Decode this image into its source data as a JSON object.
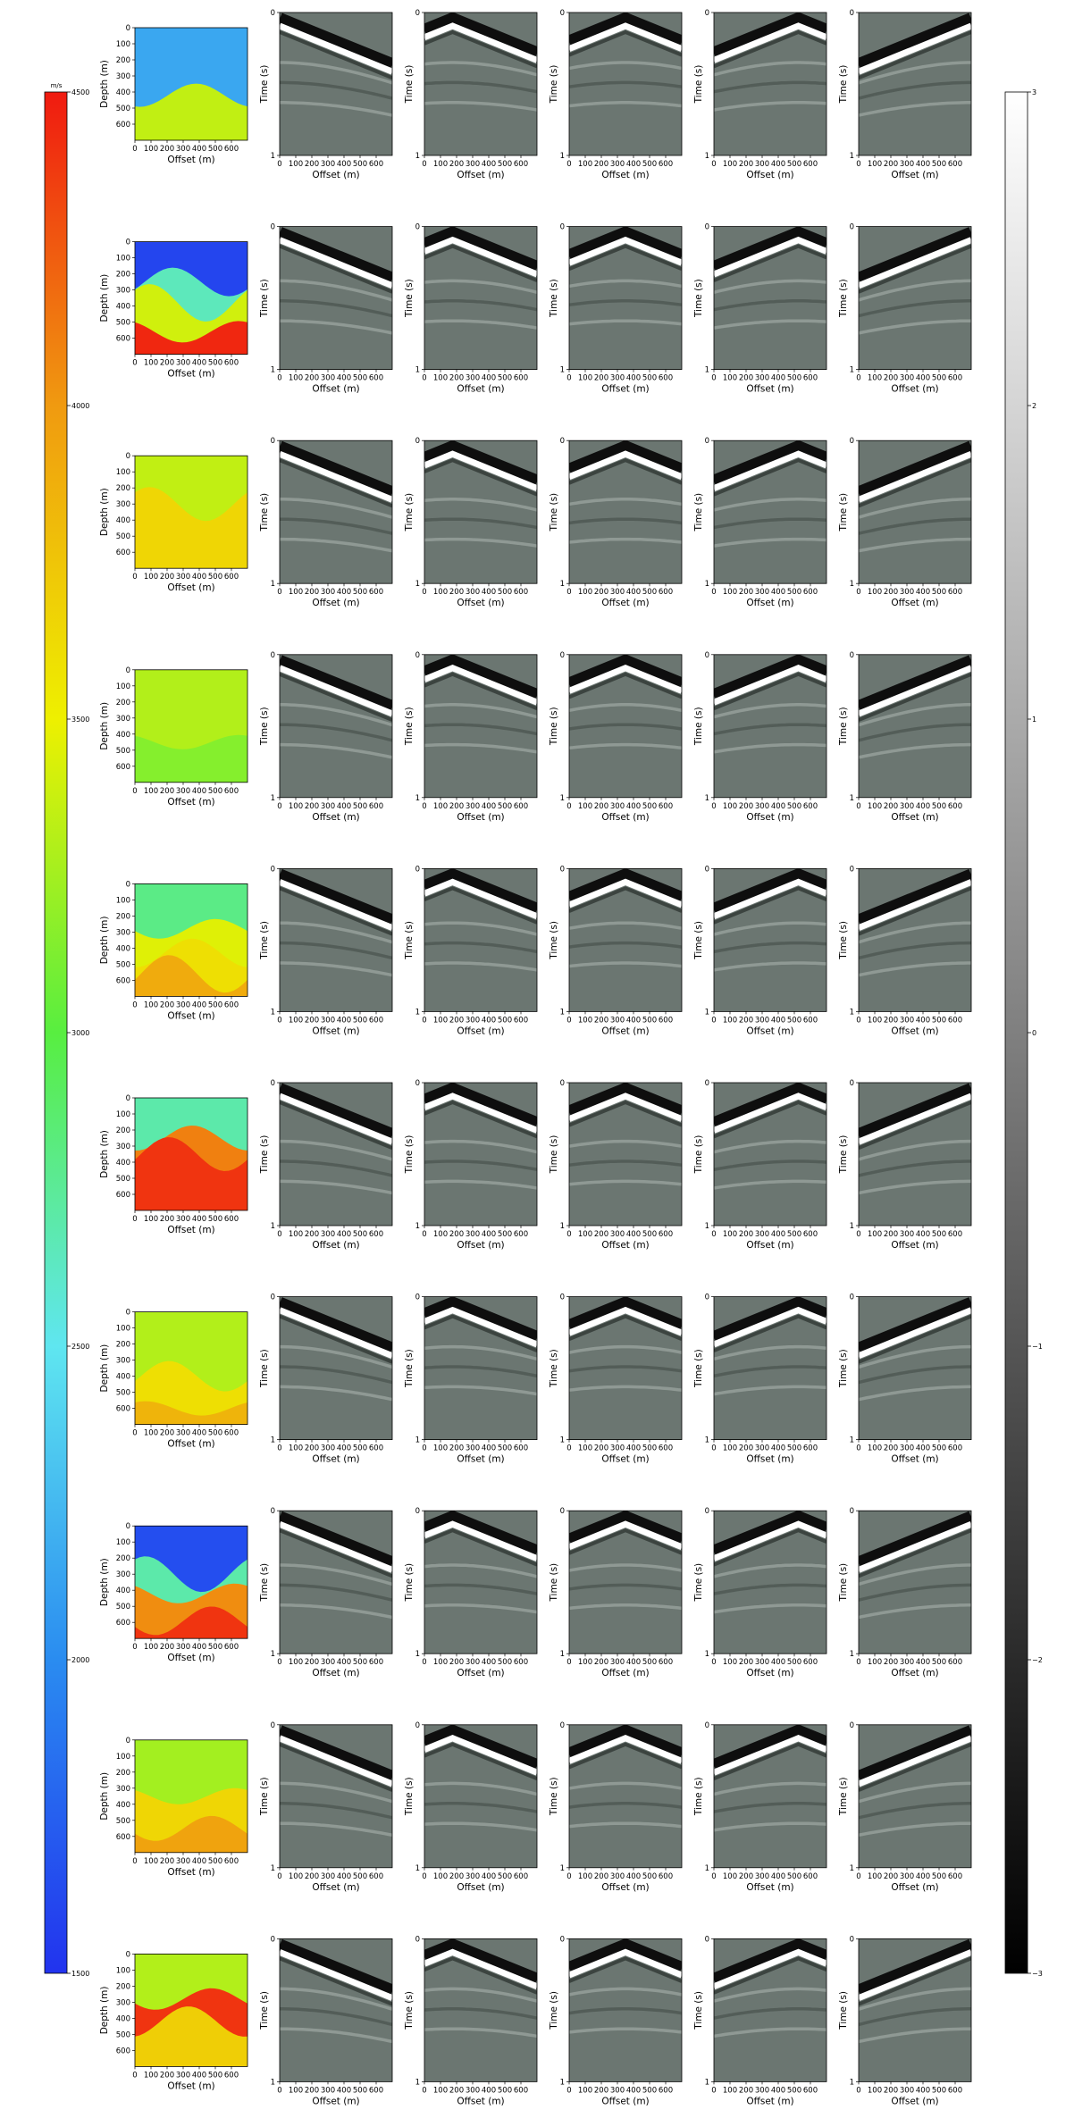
{
  "figure": {
    "rows": 10,
    "shot_columns": 5,
    "velocity_colorbar": {
      "unit": "m/s",
      "min": 1500,
      "max": 4500,
      "ticks": [
        1500,
        2000,
        2500,
        3000,
        3500,
        4000,
        4500
      ],
      "colormap": "jet",
      "stops": [
        "#2233ee",
        "#2a8cf0",
        "#5fe6f0",
        "#58ee40",
        "#eef000",
        "#f09a10",
        "#f01a10"
      ]
    },
    "amplitude_colorbar": {
      "min": -3,
      "max": 3,
      "ticks": [
        3,
        2,
        1,
        0,
        -1,
        -2,
        -3
      ],
      "tick_labels": [
        "3",
        "2",
        "1",
        "0",
        "−1",
        "−2",
        "−3"
      ],
      "colormap": "gray"
    }
  },
  "chart_data": {
    "type": "heatmap",
    "velocity_panels": {
      "xlabel": "Offset (m)",
      "ylabel": "Depth (m)",
      "xticks": [
        0,
        100,
        200,
        300,
        400,
        500,
        600
      ],
      "yticks": [
        0,
        100,
        200,
        300,
        400,
        500,
        600
      ],
      "xlim": [
        0,
        700
      ],
      "ylim": [
        700,
        0
      ]
    },
    "shot_panels": {
      "xlabel": "Offset (m)",
      "ylabel": "Time (s)",
      "xticks": [
        0,
        100,
        200,
        300,
        400,
        500,
        600
      ],
      "yticks": [
        0,
        1
      ],
      "xlim": [
        0,
        700
      ],
      "ylim": [
        1,
        0
      ],
      "source_offsets_m": [
        0,
        175,
        350,
        525,
        700
      ]
    },
    "velocity_models": [
      {
        "layers": [
          {
            "top": 0,
            "velocity": 2150
          },
          {
            "top": 420,
            "velocity": 3350
          }
        ]
      },
      {
        "layers": [
          {
            "top": 0,
            "velocity": 1600
          },
          {
            "top": 250,
            "velocity": 2650
          },
          {
            "top": 380,
            "velocity": 3400
          },
          {
            "top": 560,
            "velocity": 4450
          }
        ]
      },
      {
        "layers": [
          {
            "top": 0,
            "velocity": 3350
          },
          {
            "top": 300,
            "velocity": 3650
          }
        ]
      },
      {
        "layers": [
          {
            "top": 0,
            "velocity": 3300
          },
          {
            "top": 450,
            "velocity": 3150
          }
        ]
      },
      {
        "layers": [
          {
            "top": 0,
            "velocity": 2800
          },
          {
            "top": 280,
            "velocity": 3450
          },
          {
            "top": 430,
            "velocity": 3600
          },
          {
            "top": 560,
            "velocity": 3900
          }
        ]
      },
      {
        "layers": [
          {
            "top": 0,
            "velocity": 2700
          },
          {
            "top": 250,
            "velocity": 4100
          },
          {
            "top": 350,
            "velocity": 4400
          }
        ]
      },
      {
        "layers": [
          {
            "top": 0,
            "velocity": 3300
          },
          {
            "top": 400,
            "velocity": 3600
          },
          {
            "top": 600,
            "velocity": 3850
          }
        ]
      },
      {
        "layers": [
          {
            "top": 0,
            "velocity": 1650
          },
          {
            "top": 300,
            "velocity": 2700
          },
          {
            "top": 420,
            "velocity": 4050
          },
          {
            "top": 590,
            "velocity": 4400
          }
        ]
      },
      {
        "layers": [
          {
            "top": 0,
            "velocity": 3250
          },
          {
            "top": 350,
            "velocity": 3650
          },
          {
            "top": 550,
            "velocity": 3950
          }
        ]
      },
      {
        "layers": [
          {
            "top": 0,
            "velocity": 3300
          },
          {
            "top": 280,
            "velocity": 4400
          },
          {
            "top": 420,
            "velocity": 3700
          }
        ]
      }
    ]
  }
}
